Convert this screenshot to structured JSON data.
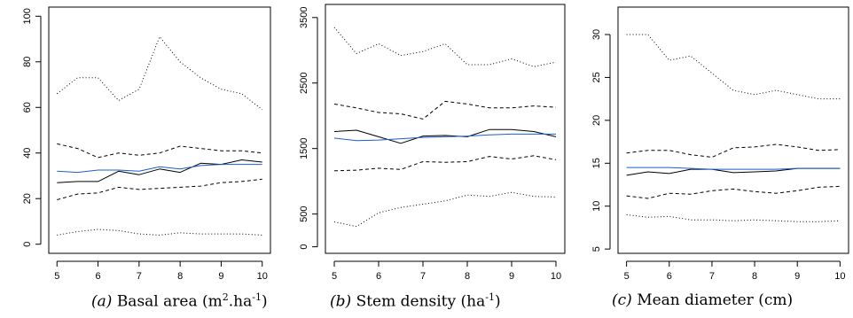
{
  "chart_data": [
    {
      "type": "line",
      "caption": {
        "tag": "(a)",
        "text_before": "Basal area (m",
        "sup1": "2",
        "text_mid": ".ha",
        "sup2": "-1",
        "text_after": ")"
      },
      "xlim": [
        4.8,
        10.2
      ],
      "ylim": [
        -4,
        104
      ],
      "xticks": [
        5,
        6,
        7,
        8,
        9,
        10
      ],
      "yticks": [
        0,
        20,
        40,
        60,
        80,
        100
      ],
      "x": [
        5,
        5.5,
        6,
        6.5,
        7,
        7.5,
        8,
        8.5,
        9,
        9.5,
        10
      ],
      "series": [
        {
          "style": "dotted",
          "color": "#000000",
          "values": [
            66,
            73,
            73,
            63,
            68,
            91,
            80,
            73,
            68,
            66,
            59
          ]
        },
        {
          "style": "dashed",
          "color": "#000000",
          "values": [
            44,
            42,
            38,
            40,
            39,
            40,
            43,
            42,
            41,
            41,
            40
          ]
        },
        {
          "style": "solid",
          "color": "#000000",
          "values": [
            27,
            27.5,
            27.5,
            32,
            30.5,
            33,
            31.5,
            35.5,
            35,
            37,
            36
          ]
        },
        {
          "style": "solid",
          "color": "#1a5fc8",
          "values": [
            32,
            31.5,
            32.5,
            32.5,
            32,
            34,
            33,
            34.5,
            35,
            35,
            35
          ]
        },
        {
          "style": "dashed",
          "color": "#000000",
          "values": [
            19.5,
            22,
            22.5,
            25,
            24,
            24.5,
            25,
            25.5,
            27,
            27.5,
            28.5
          ]
        },
        {
          "style": "dotted",
          "color": "#000000",
          "values": [
            4,
            5.5,
            6.5,
            6,
            4.5,
            4,
            5,
            4.5,
            4.5,
            4.5,
            4
          ]
        }
      ]
    },
    {
      "type": "line",
      "caption": {
        "tag": "(b)",
        "text_before": "Stem density (ha",
        "sup1": "-1",
        "text_mid": "",
        "sup2": "",
        "text_after": ")"
      },
      "xlim": [
        4.8,
        10.2
      ],
      "ylim": [
        -100,
        3700
      ],
      "xticks": [
        5,
        6,
        7,
        8,
        9,
        10
      ],
      "yticks": [
        0,
        500,
        1500,
        2500,
        3500
      ],
      "x": [
        5,
        5.5,
        6,
        6.5,
        7,
        7.5,
        8,
        8.5,
        9,
        9.5,
        10
      ],
      "series": [
        {
          "style": "dotted",
          "color": "#000000",
          "values": [
            3350,
            2950,
            3100,
            2920,
            2980,
            3100,
            2780,
            2780,
            2870,
            2750,
            2820
          ]
        },
        {
          "style": "dashed",
          "color": "#000000",
          "values": [
            2180,
            2120,
            2050,
            2030,
            1950,
            2220,
            2180,
            2120,
            2120,
            2150,
            2130
          ]
        },
        {
          "style": "solid",
          "color": "#000000",
          "values": [
            1760,
            1780,
            1680,
            1580,
            1690,
            1700,
            1680,
            1790,
            1790,
            1760,
            1680
          ]
        },
        {
          "style": "solid",
          "color": "#1a5fc8",
          "values": [
            1660,
            1620,
            1630,
            1650,
            1670,
            1680,
            1690,
            1710,
            1720,
            1720,
            1720
          ]
        },
        {
          "style": "dashed",
          "color": "#000000",
          "values": [
            1160,
            1170,
            1200,
            1180,
            1300,
            1290,
            1300,
            1380,
            1340,
            1390,
            1330
          ]
        },
        {
          "style": "dotted",
          "color": "#000000",
          "values": [
            380,
            310,
            520,
            600,
            650,
            700,
            790,
            770,
            830,
            770,
            760
          ]
        }
      ]
    },
    {
      "type": "line",
      "caption": {
        "tag": "(c)",
        "text_before": "Mean diameter (cm)",
        "sup1": "",
        "text_mid": "",
        "sup2": "",
        "text_after": ""
      },
      "xlim": [
        4.8,
        10.2
      ],
      "ylim": [
        4.5,
        33.2
      ],
      "xticks": [
        5,
        6,
        7,
        8,
        9,
        10
      ],
      "yticks": [
        5,
        10,
        15,
        20,
        25,
        30
      ],
      "x": [
        5,
        5.5,
        6,
        6.5,
        7,
        7.5,
        8,
        8.5,
        9,
        9.5,
        10
      ],
      "series": [
        {
          "style": "dotted",
          "color": "#000000",
          "values": [
            30,
            30,
            27,
            27.5,
            25.5,
            23.5,
            23,
            23.5,
            23,
            22.5,
            22.5
          ]
        },
        {
          "style": "dashed",
          "color": "#000000",
          "values": [
            16.2,
            16.5,
            16.5,
            16,
            15.7,
            16.8,
            16.9,
            17.2,
            16.9,
            16.5,
            16.6
          ]
        },
        {
          "style": "solid",
          "color": "#000000",
          "values": [
            13.6,
            14,
            13.8,
            14.3,
            14.3,
            13.9,
            14,
            14.1,
            14.4,
            14.4,
            14.4
          ]
        },
        {
          "style": "solid",
          "color": "#1a5fc8",
          "values": [
            14.5,
            14.5,
            14.5,
            14.4,
            14.3,
            14.3,
            14.3,
            14.3,
            14.4,
            14.4,
            14.4
          ]
        },
        {
          "style": "dashed",
          "color": "#000000",
          "values": [
            11.2,
            10.9,
            11.5,
            11.4,
            11.8,
            12,
            11.7,
            11.5,
            11.8,
            12.2,
            12.3
          ]
        },
        {
          "style": "dotted",
          "color": "#000000",
          "values": [
            9,
            8.7,
            8.8,
            8.4,
            8.4,
            8.3,
            8.4,
            8.3,
            8.2,
            8.2,
            8.3
          ]
        }
      ]
    }
  ]
}
